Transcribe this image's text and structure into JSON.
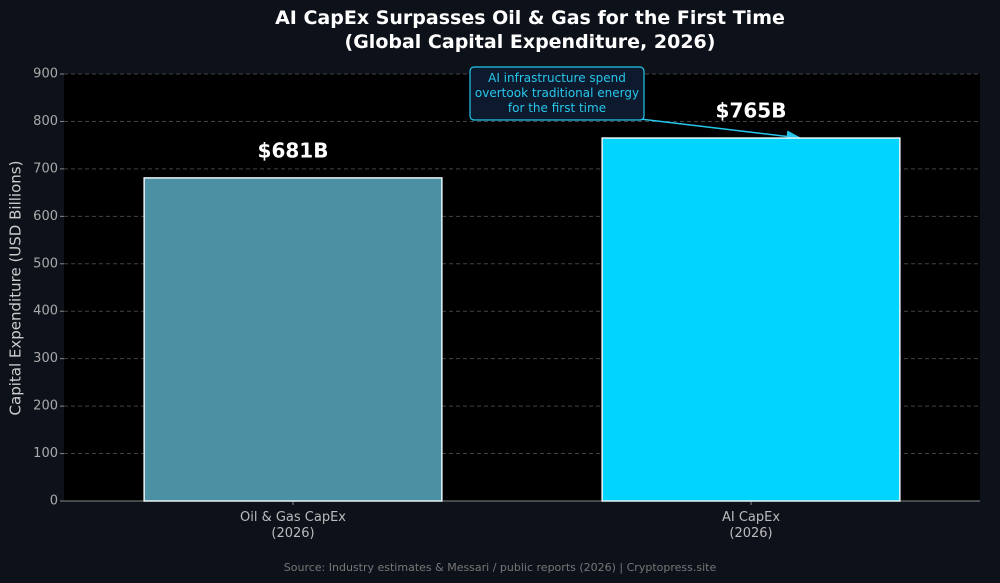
{
  "chart_data": {
    "type": "bar",
    "title": "AI CapEx Surpasses Oil & Gas for the First Time\n(Global Capital Expenditure, 2026)",
    "y_label": "Capital Expenditure (USD Billions)",
    "categories": [
      "Oil & Gas CapEx\n(2026)",
      "AI CapEx\n(2026)"
    ],
    "values": [
      681,
      765
    ],
    "value_labels": [
      "$681B",
      "$765B"
    ],
    "colors": [
      "#4c91a3",
      "#00d4ff"
    ],
    "ylim": [
      0,
      900
    ],
    "yticks": [
      0,
      100,
      200,
      300,
      400,
      500,
      600,
      700,
      800,
      900
    ],
    "grid": true,
    "annotation": "AI infrastructure spend\novertook traditional energy\nfor the first time",
    "source": "Source: Industry estimates & Messari / public reports (2026)  |  Cryptopress.site"
  }
}
